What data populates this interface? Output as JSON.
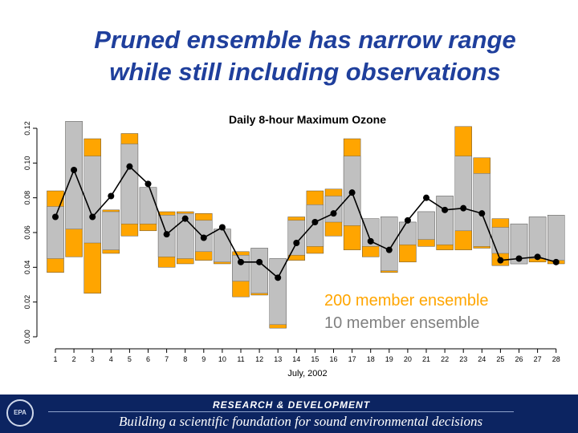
{
  "slide": {
    "title_line1": "Pruned ensemble has narrow range",
    "title_line2": "while still including observations"
  },
  "legend": {
    "large_label": "200 member ensemble",
    "small_label": "10 member ensemble"
  },
  "footer": {
    "line1": "RESEARCH & DEVELOPMENT",
    "line2": "Building a scientific foundation for sound environmental decisions"
  },
  "colors": {
    "large_ensemble": "#ffa500",
    "small_ensemble": "#c0c0c0",
    "legend_large_text": "#ffa500",
    "legend_small_text": "#808080",
    "title": "#1f3f9c",
    "footer_background": "#0c2461"
  },
  "chart_data": {
    "type": "bar",
    "title": "Daily 8-hour Maximum Ozone",
    "xlabel": "July, 2002",
    "ylabel": "",
    "ylim": [
      0,
      0.12
    ],
    "yticks": [
      "0.00",
      "0.02",
      "0.04",
      "0.06",
      "0.08",
      "0.10",
      "0.12"
    ],
    "categories": [
      "1",
      "2",
      "3",
      "4",
      "5",
      "6",
      "7",
      "8",
      "9",
      "10",
      "11",
      "12",
      "13",
      "14",
      "15",
      "16",
      "17",
      "18",
      "19",
      "20",
      "21",
      "22",
      "23",
      "24",
      "25",
      "26",
      "27",
      "28"
    ],
    "series": [
      {
        "name": "200 member ensemble",
        "low": [
          0.037,
          0.046,
          0.025,
          0.048,
          0.058,
          0.061,
          0.04,
          0.042,
          0.044,
          0.042,
          0.023,
          0.024,
          0.005,
          0.044,
          0.048,
          0.058,
          0.05,
          0.046,
          0.037,
          0.043,
          0.052,
          0.05,
          0.05,
          0.051,
          0.041,
          0.042,
          0.043,
          0.042
        ],
        "high": [
          0.084,
          0.124,
          0.114,
          0.073,
          0.117,
          0.086,
          0.072,
          0.072,
          0.071,
          0.062,
          0.049,
          0.051,
          0.045,
          0.069,
          0.084,
          0.085,
          0.114,
          0.068,
          0.069,
          0.066,
          0.072,
          0.081,
          0.121,
          0.103,
          0.068,
          0.065,
          0.069,
          0.07
        ]
      },
      {
        "name": "10 member ensemble",
        "low": [
          0.045,
          0.062,
          0.054,
          0.05,
          0.065,
          0.065,
          0.046,
          0.045,
          0.049,
          0.043,
          0.032,
          0.025,
          0.007,
          0.047,
          0.052,
          0.066,
          0.064,
          0.052,
          0.038,
          0.053,
          0.056,
          0.053,
          0.061,
          0.052,
          0.048,
          0.042,
          0.045,
          0.044
        ],
        "high": [
          0.075,
          0.124,
          0.104,
          0.072,
          0.111,
          0.086,
          0.07,
          0.071,
          0.067,
          0.062,
          0.047,
          0.051,
          0.045,
          0.067,
          0.076,
          0.081,
          0.104,
          0.068,
          0.069,
          0.066,
          0.072,
          0.081,
          0.104,
          0.094,
          0.063,
          0.065,
          0.069,
          0.07
        ]
      },
      {
        "name": "observations",
        "values": [
          0.069,
          0.096,
          0.069,
          0.081,
          0.098,
          0.088,
          0.059,
          0.068,
          0.057,
          0.063,
          0.043,
          0.043,
          0.034,
          0.054,
          0.066,
          0.071,
          0.083,
          0.055,
          0.05,
          0.067,
          0.08,
          0.073,
          0.074,
          0.071,
          0.044,
          0.045,
          0.046,
          0.043
        ]
      }
    ]
  }
}
